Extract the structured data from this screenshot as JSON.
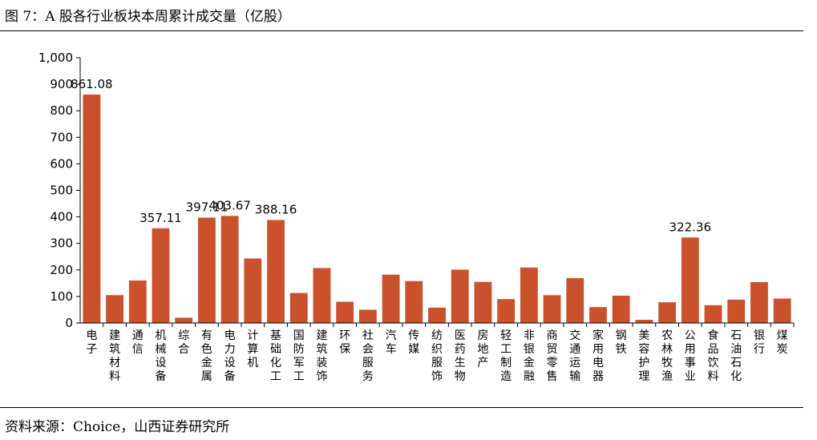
{
  "figure": {
    "title": "图 7：A 股各行业板块本周累计成交量（亿股）",
    "source": "资料来源：Choice，山西证券研究所"
  },
  "colors": {
    "bar": "#C9512B",
    "axis": "#000000"
  },
  "chart_data": {
    "type": "bar",
    "title": "",
    "xlabel": "",
    "ylabel": "",
    "ylim": [
      0,
      1000
    ],
    "y_ticks": [
      "0",
      "100",
      "200",
      "300",
      "400",
      "500",
      "600",
      "700",
      "800",
      "900",
      "1,000"
    ],
    "grid": false,
    "legend": "none",
    "categories": [
      "电子",
      "建筑材料",
      "通信",
      "机械设备",
      "综合",
      "有色金属",
      "电力设备",
      "计算机",
      "基础化工",
      "国防军工",
      "建筑装饰",
      "环保",
      "社会服务",
      "汽车",
      "传媒",
      "纺织服饰",
      "医药生物",
      "房地产",
      "轻工制造",
      "非银金融",
      "商贸零售",
      "交通运输",
      "家用电器",
      "钢铁",
      "美容护理",
      "农林牧渔",
      "公用事业",
      "食品饮料",
      "石油石化",
      "银行",
      "煤炭"
    ],
    "values": [
      861.08,
      105,
      160,
      357.11,
      20,
      397.11,
      403.67,
      243,
      388.16,
      113,
      207,
      80,
      50,
      182,
      158,
      58,
      201,
      155,
      90,
      209,
      105,
      169,
      60,
      103,
      12,
      78,
      322.36,
      67,
      88,
      154,
      92
    ],
    "data_labels": [
      {
        "index": 0,
        "text": "861.08"
      },
      {
        "index": 3,
        "text": "357.11"
      },
      {
        "index": 5,
        "text": "397.11"
      },
      {
        "index": 6,
        "text": "403.67"
      },
      {
        "index": 8,
        "text": "388.16"
      },
      {
        "index": 26,
        "text": "322.36"
      }
    ]
  }
}
